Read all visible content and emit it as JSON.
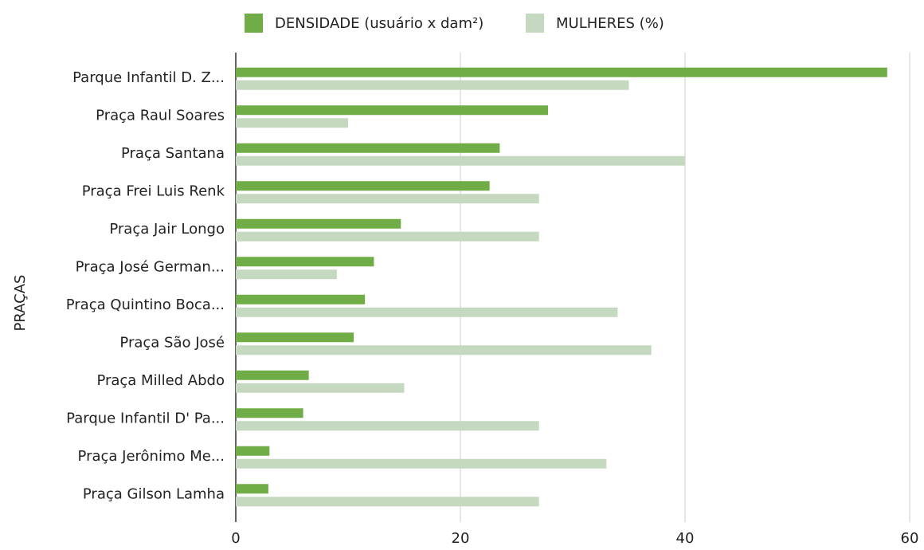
{
  "chart_data": {
    "type": "hbar",
    "y_label": "PRAÇAS",
    "categories": [
      "Parque Infantil D. Z...",
      "Praça Raul Soares",
      "Praça Santana",
      "Praça Frei Luis Renk",
      "Praça Jair Longo",
      "Praça José German...",
      "Praça Quintino Boca...",
      "Praça São José",
      "Praça Milled Abdo",
      "Parque Infantil D' Pa...",
      "Praça Jerônimo Me...",
      "Praça Gilson Lamha"
    ],
    "series": [
      {
        "name": "DENSIDADE (usuário x dam²)",
        "color": "#70ad47",
        "values": [
          58.0,
          27.8,
          23.5,
          22.6,
          14.7,
          12.3,
          11.5,
          10.5,
          6.5,
          6.0,
          3.0,
          2.9
        ]
      },
      {
        "name": "MULHERES (%)",
        "color": "#c5d9c0",
        "values": [
          35,
          10,
          40,
          27,
          27,
          9,
          34,
          37,
          15,
          27,
          33,
          27
        ]
      }
    ],
    "xlim": [
      0,
      60
    ],
    "xticks": [
      0,
      20,
      40,
      60
    ],
    "grid": true,
    "legend": "top"
  }
}
